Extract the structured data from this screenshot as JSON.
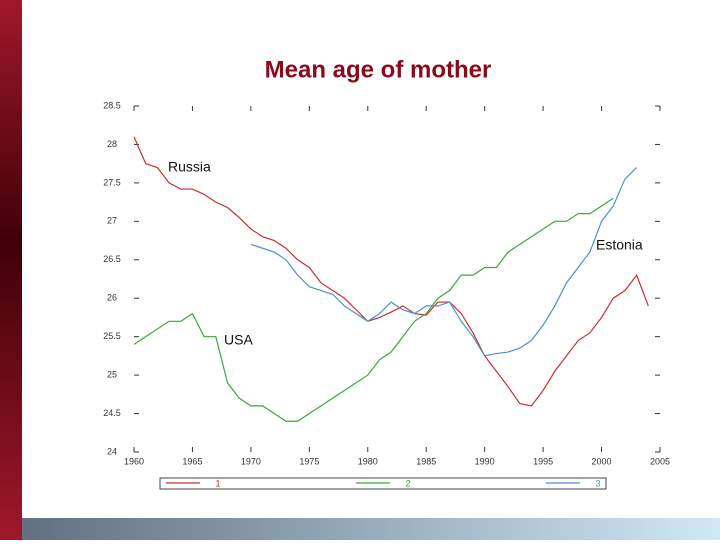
{
  "chart_data": {
    "type": "line",
    "title": "Mean age of mother",
    "x": [
      1960,
      1961,
      1962,
      1963,
      1964,
      1965,
      1966,
      1967,
      1968,
      1969,
      1970,
      1971,
      1972,
      1973,
      1974,
      1975,
      1976,
      1977,
      1978,
      1979,
      1980,
      1981,
      1982,
      1983,
      1984,
      1985,
      1986,
      1987,
      1988,
      1989,
      1990,
      1991,
      1992,
      1993,
      1994,
      1995,
      1996,
      1997,
      1998,
      1999,
      2000,
      2001,
      2002,
      2003,
      2004
    ],
    "series": [
      {
        "name": "1",
        "color": "#c8302c",
        "values": [
          28.1,
          27.75,
          27.7,
          27.5,
          27.42,
          27.42,
          27.35,
          27.25,
          27.18,
          27.05,
          26.9,
          26.8,
          26.75,
          26.65,
          26.5,
          26.4,
          26.2,
          26.1,
          26.0,
          25.85,
          25.7,
          25.75,
          25.82,
          25.9,
          25.8,
          25.78,
          25.95,
          25.95,
          25.8,
          25.55,
          25.25,
          25.05,
          24.85,
          24.63,
          24.6,
          24.8,
          25.05,
          25.25,
          25.45,
          25.55,
          25.75,
          26.0,
          26.1,
          26.3,
          25.9
        ]
      },
      {
        "name": "2",
        "color": "#3aaa35",
        "values": [
          25.4,
          25.5,
          25.6,
          25.7,
          25.7,
          25.8,
          25.5,
          25.5,
          24.9,
          24.7,
          24.6,
          24.6,
          24.5,
          24.4,
          24.4,
          24.5,
          24.6,
          24.7,
          24.8,
          24.9,
          25.0,
          25.2,
          25.3,
          25.5,
          25.7,
          25.8,
          26.0,
          26.1,
          26.3,
          26.3,
          26.4,
          26.4,
          26.6,
          26.7,
          26.8,
          26.9,
          27.0,
          27.0,
          27.1,
          27.1,
          27.2,
          27.3,
          null,
          null,
          null
        ]
      },
      {
        "name": "3",
        "color": "#4a8fd8",
        "values": [
          null,
          null,
          null,
          null,
          null,
          null,
          null,
          null,
          null,
          null,
          26.7,
          26.65,
          26.6,
          26.5,
          26.3,
          26.15,
          26.1,
          26.05,
          25.9,
          25.8,
          25.7,
          25.8,
          25.95,
          25.85,
          25.8,
          25.9,
          25.9,
          25.95,
          25.7,
          25.5,
          25.25,
          25.28,
          25.3,
          25.35,
          25.45,
          25.65,
          25.9,
          26.2,
          26.4,
          26.6,
          27.0,
          27.2,
          27.55,
          27.7,
          null
        ]
      }
    ],
    "annotations": [
      "Russia",
      "Estonia",
      "USA"
    ],
    "xlim": [
      1960,
      2005
    ],
    "xticks": [
      1960,
      1965,
      1970,
      1975,
      1980,
      1985,
      1990,
      1995,
      2000,
      2005
    ],
    "ylim": [
      24,
      28.5
    ],
    "yticks": [
      24,
      24.5,
      25,
      25.5,
      26,
      26.5,
      27,
      27.5,
      28,
      28.5
    ],
    "grid": false
  }
}
